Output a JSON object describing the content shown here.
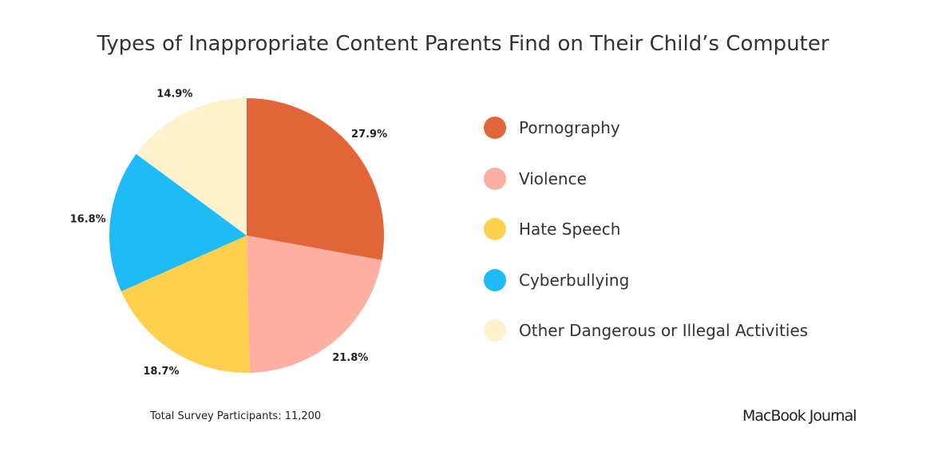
{
  "chart_data": {
    "type": "pie",
    "title": "Types of Inappropriate Content Parents Find on Their Child’s Computer",
    "categories": [
      "Pornography",
      "Violence",
      "Hate Speech",
      "Cyberbullying",
      "Other Dangerous or Illegal Activities"
    ],
    "values": [
      27.9,
      21.8,
      18.7,
      16.8,
      14.9
    ],
    "data_labels": [
      "27.9%",
      "21.8%",
      "18.7%",
      "16.8%",
      "14.9%"
    ],
    "colors": [
      "#E2653A",
      "#FFB0A3",
      "#FFD04D",
      "#1EBBF7",
      "#FFF2CC"
    ],
    "start": "top, clockwise",
    "legend_placement": "right"
  },
  "note": "Total Survey Participants: 11,200",
  "brand": "MacBook Journal"
}
